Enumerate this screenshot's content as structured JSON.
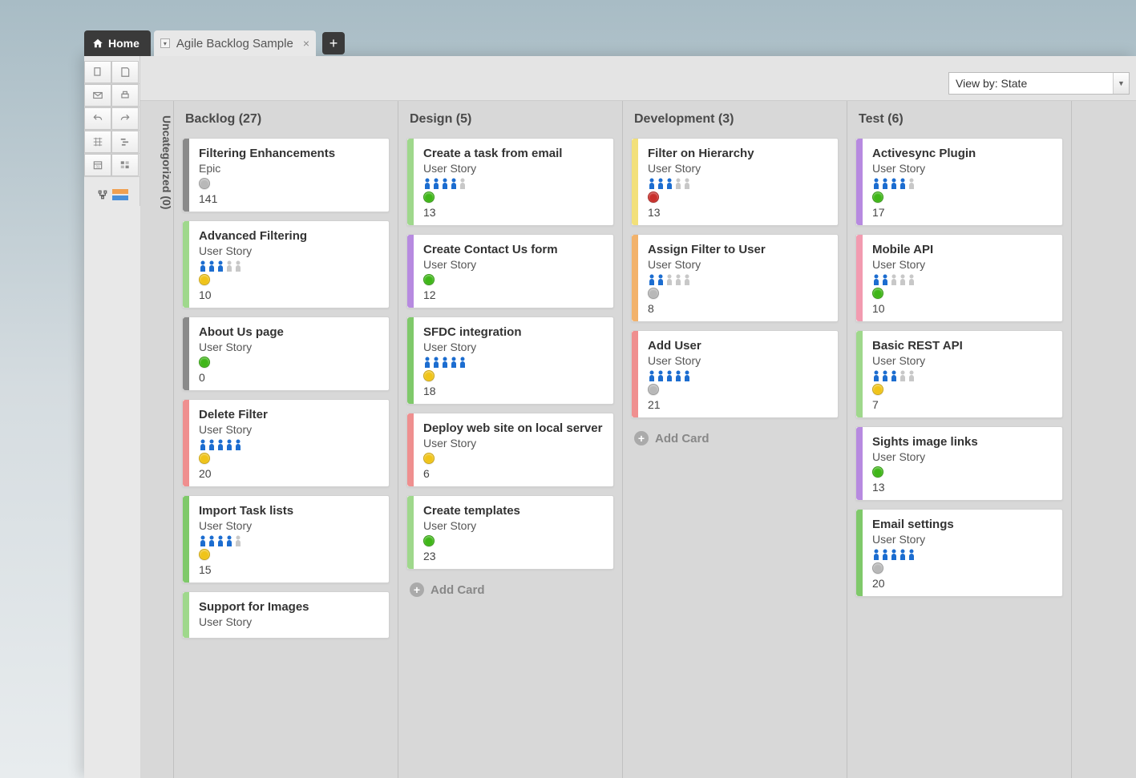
{
  "tabs": {
    "home": "Home",
    "sheet": "Agile Backlog Sample"
  },
  "viewBy": "View by: State",
  "uncategorized": {
    "label": "Uncategorized",
    "count": 0
  },
  "statusColors": {
    "gray": "#b8b8b8",
    "green": "#3fb618",
    "yellow": "#f0c419",
    "red": "#c9302c"
  },
  "stripeColors": {
    "gray": "#8a8a8a",
    "green1": "#9fd88c",
    "green2": "#7fc96a",
    "red": "#ef8f8f",
    "purple": "#b78ae0",
    "yellow": "#f2e07a",
    "orange": "#f2b26b",
    "pink": "#f29bb0"
  },
  "personColors": {
    "active": "#1c6dd0",
    "inactive": "#c8c8c8"
  },
  "addCardLabel": "Add Card",
  "columns": [
    {
      "title": "Backlog",
      "count": 27,
      "cards": [
        {
          "title": "Filtering Enhancements",
          "type": "Epic",
          "stripe": "gray",
          "people": null,
          "status": "gray",
          "points": 141
        },
        {
          "title": "Advanced Filtering",
          "type": "User Story",
          "stripe": "green1",
          "people": [
            1,
            1,
            1,
            0,
            0
          ],
          "status": "yellow",
          "points": 10
        },
        {
          "title": "About Us page",
          "type": "User Story",
          "stripe": "gray",
          "people": null,
          "status": "green",
          "points": 0
        },
        {
          "title": "Delete Filter",
          "type": "User Story",
          "stripe": "red",
          "people": [
            1,
            1,
            1,
            1,
            1
          ],
          "status": "yellow",
          "points": 20
        },
        {
          "title": "Import Task lists",
          "type": "User Story",
          "stripe": "green2",
          "people": [
            1,
            1,
            1,
            1,
            0
          ],
          "status": "yellow",
          "points": 15
        },
        {
          "title": "Support for Images",
          "type": "User Story",
          "stripe": "green1",
          "people": null,
          "status": null,
          "points": null
        }
      ],
      "showAdd": false
    },
    {
      "title": "Design",
      "count": 5,
      "cards": [
        {
          "title": "Create a task from email",
          "type": "User Story",
          "stripe": "green1",
          "people": [
            1,
            1,
            1,
            1,
            0
          ],
          "status": "green",
          "points": 13
        },
        {
          "title": "Create Contact Us form",
          "type": "User Story",
          "stripe": "purple",
          "people": null,
          "status": "green",
          "points": 12
        },
        {
          "title": "SFDC integration",
          "type": "User Story",
          "stripe": "green2",
          "people": [
            1,
            1,
            1,
            1,
            1
          ],
          "status": "yellow",
          "points": 18
        },
        {
          "title": "Deploy web site on local server",
          "type": "User Story",
          "stripe": "red",
          "people": null,
          "status": "yellow",
          "points": 6
        },
        {
          "title": "Create templates",
          "type": "User Story",
          "stripe": "green1",
          "people": null,
          "status": "green",
          "points": 23
        }
      ],
      "showAdd": true
    },
    {
      "title": "Development",
      "count": 3,
      "cards": [
        {
          "title": "Filter on Hierarchy",
          "type": "User Story",
          "stripe": "yellow",
          "people": [
            1,
            1,
            1,
            0,
            0
          ],
          "status": "red",
          "points": 13
        },
        {
          "title": "Assign Filter to User",
          "type": "User Story",
          "stripe": "orange",
          "people": [
            1,
            1,
            0,
            0,
            0
          ],
          "status": "gray",
          "points": 8
        },
        {
          "title": "Add User",
          "type": "User Story",
          "stripe": "red",
          "people": [
            1,
            1,
            1,
            1,
            1
          ],
          "status": "gray",
          "points": 21
        }
      ],
      "showAdd": true
    },
    {
      "title": "Test",
      "count": 6,
      "cards": [
        {
          "title": "Activesync Plugin",
          "type": "User Story",
          "stripe": "purple",
          "people": [
            1,
            1,
            1,
            1,
            0
          ],
          "status": "green",
          "points": 17
        },
        {
          "title": "Mobile API",
          "type": "User Story",
          "stripe": "pink",
          "people": [
            1,
            1,
            0,
            0,
            0
          ],
          "status": "green",
          "points": 10
        },
        {
          "title": "Basic REST API",
          "type": "User Story",
          "stripe": "green1",
          "people": [
            1,
            1,
            1,
            0,
            0
          ],
          "status": "yellow",
          "points": 7
        },
        {
          "title": "Sights image links",
          "type": "User Story",
          "stripe": "purple",
          "people": null,
          "status": "green",
          "points": 13
        },
        {
          "title": "Email settings",
          "type": "User Story",
          "stripe": "green2",
          "people": [
            1,
            1,
            1,
            1,
            1
          ],
          "status": "gray",
          "points": 20
        }
      ],
      "showAdd": false
    }
  ]
}
